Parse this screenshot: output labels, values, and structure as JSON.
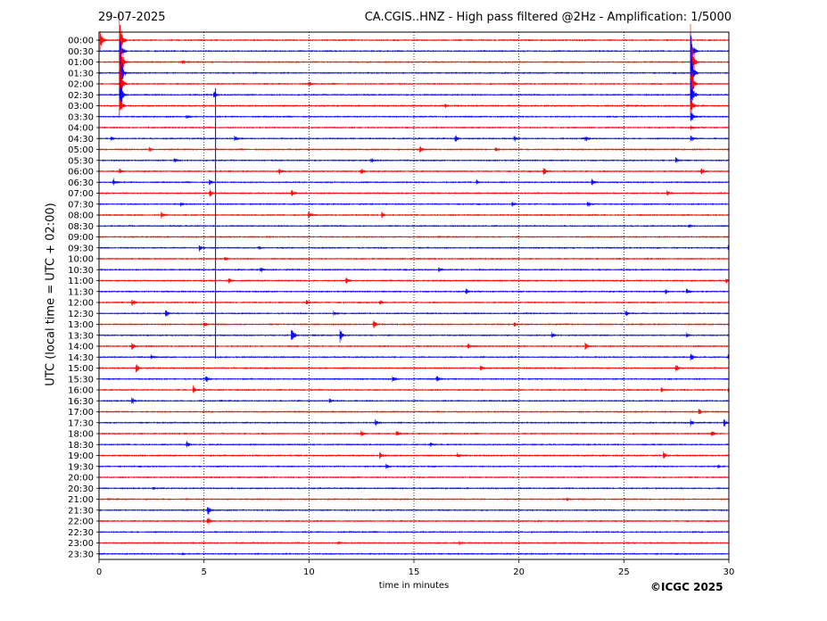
{
  "header": {
    "date": "29-07-2025",
    "title": "CA.CGIS..HNZ - High pass filtered @2Hz - Amplification: 1/5000"
  },
  "footer": {
    "copyright": "©ICGC 2025"
  },
  "chart_data": {
    "type": "line",
    "xlabel": "time in minutes",
    "ylabel": "UTC (local time = UTC + 02:00)",
    "xlim": [
      0,
      30
    ],
    "x_ticks": [
      "0",
      "5",
      "10",
      "15",
      "20",
      "25",
      "30"
    ],
    "y_ticks": [
      "00:00",
      "00:30",
      "01:00",
      "01:30",
      "02:00",
      "02:30",
      "03:00",
      "03:30",
      "04:00",
      "04:30",
      "05:00",
      "05:30",
      "06:00",
      "06:30",
      "07:00",
      "07:30",
      "08:00",
      "08:30",
      "09:00",
      "09:30",
      "10:00",
      "10:30",
      "11:00",
      "11:30",
      "12:00",
      "12:30",
      "13:00",
      "13:30",
      "14:00",
      "14:30",
      "15:00",
      "15:30",
      "16:00",
      "16:30",
      "17:00",
      "17:30",
      "18:00",
      "18:30",
      "19:00",
      "19:30",
      "20:00",
      "20:30",
      "21:00",
      "21:30",
      "22:00",
      "22:30",
      "23:00",
      "23:30"
    ],
    "grid": {
      "x": true,
      "style": "dotted"
    },
    "trace_colors": [
      "#ff0000",
      "#0000ff"
    ],
    "series": [
      {
        "row": "00:00",
        "events": [
          {
            "x": 0.1,
            "amp": 1.2
          },
          {
            "x": 1.0,
            "amp": 4
          }
        ]
      },
      {
        "row": "00:30",
        "events": [
          {
            "x": 1.0,
            "amp": 3
          },
          {
            "x": 28.2,
            "amp": 3
          }
        ]
      },
      {
        "row": "01:00",
        "events": [
          {
            "x": 1.0,
            "amp": 5
          },
          {
            "x": 4.0,
            "amp": 0.2
          },
          {
            "x": 28.2,
            "amp": 5
          }
        ]
      },
      {
        "row": "01:30",
        "events": [
          {
            "x": 1.0,
            "amp": 5
          },
          {
            "x": 28.2,
            "amp": 5
          }
        ]
      },
      {
        "row": "02:00",
        "events": [
          {
            "x": 1.0,
            "amp": 4
          },
          {
            "x": 10.0,
            "amp": 0.3
          },
          {
            "x": 28.2,
            "amp": 4
          }
        ]
      },
      {
        "row": "02:30",
        "events": [
          {
            "x": 1.0,
            "amp": 3
          },
          {
            "x": 5.5,
            "amp": 0.4
          },
          {
            "x": 28.2,
            "amp": 3
          }
        ]
      },
      {
        "row": "03:00",
        "events": [
          {
            "x": 1.0,
            "amp": 1.5
          },
          {
            "x": 16.5,
            "amp": 0.2
          },
          {
            "x": 28.2,
            "amp": 2
          }
        ]
      },
      {
        "row": "03:30",
        "events": [
          {
            "x": 4.2,
            "amp": 0.2
          },
          {
            "x": 28.2,
            "amp": 1
          }
        ]
      },
      {
        "row": "04:00",
        "events": [
          {
            "x": 28.2,
            "amp": 0.3
          }
        ]
      },
      {
        "row": "04:30",
        "events": [
          {
            "x": 0.6,
            "amp": 0.2
          },
          {
            "x": 6.5,
            "amp": 0.35
          },
          {
            "x": 17.0,
            "amp": 0.4
          },
          {
            "x": 19.8,
            "amp": 0.3
          },
          {
            "x": 23.2,
            "amp": 0.3
          },
          {
            "x": 28.2,
            "amp": 0.5
          }
        ]
      },
      {
        "row": "05:00",
        "events": [
          {
            "x": 2.4,
            "amp": 0.3
          },
          {
            "x": 15.3,
            "amp": 0.35
          },
          {
            "x": 18.9,
            "amp": 0.3
          }
        ]
      },
      {
        "row": "05:30",
        "events": [
          {
            "x": 3.6,
            "amp": 0.4
          },
          {
            "x": 13.0,
            "amp": 0.3
          },
          {
            "x": 27.5,
            "amp": 0.4
          }
        ]
      },
      {
        "row": "06:00",
        "events": [
          {
            "x": 1.0,
            "amp": 0.3
          },
          {
            "x": 8.6,
            "amp": 0.35
          },
          {
            "x": 12.5,
            "amp": 0.3
          },
          {
            "x": 21.2,
            "amp": 0.5
          },
          {
            "x": 28.7,
            "amp": 0.4
          }
        ]
      },
      {
        "row": "06:30",
        "events": [
          {
            "x": 0.7,
            "amp": 0.45
          },
          {
            "x": 5.3,
            "amp": 0.3
          },
          {
            "x": 18.0,
            "amp": 0.3
          },
          {
            "x": 23.5,
            "amp": 0.3
          }
        ]
      },
      {
        "row": "07:00",
        "events": [
          {
            "x": 5.3,
            "amp": 0.5
          },
          {
            "x": 9.2,
            "amp": 0.4
          },
          {
            "x": 27.1,
            "amp": 0.3
          }
        ]
      },
      {
        "row": "07:30",
        "events": [
          {
            "x": 3.9,
            "amp": 0.3
          },
          {
            "x": 19.7,
            "amp": 0.3
          },
          {
            "x": 23.3,
            "amp": 0.35
          }
        ]
      },
      {
        "row": "08:00",
        "events": [
          {
            "x": 3.0,
            "amp": 0.35
          },
          {
            "x": 10.0,
            "amp": 0.55
          },
          {
            "x": 13.5,
            "amp": 0.4
          }
        ]
      },
      {
        "row": "08:30",
        "events": [
          {
            "x": 28.1,
            "amp": 0.2
          }
        ]
      },
      {
        "row": "09:00",
        "events": []
      },
      {
        "row": "09:30",
        "events": [
          {
            "x": 4.8,
            "amp": 0.4
          },
          {
            "x": 7.6,
            "amp": 0.2
          },
          {
            "x": 30.0,
            "amp": 0.4
          }
        ]
      },
      {
        "row": "10:00",
        "events": [
          {
            "x": 6.0,
            "amp": 0.3
          }
        ]
      },
      {
        "row": "10:30",
        "events": [
          {
            "x": 7.7,
            "amp": 0.35
          },
          {
            "x": 16.2,
            "amp": 0.3
          }
        ]
      },
      {
        "row": "11:00",
        "events": [
          {
            "x": 6.2,
            "amp": 0.4
          },
          {
            "x": 11.8,
            "amp": 0.4
          },
          {
            "x": 29.9,
            "amp": 0.3
          }
        ]
      },
      {
        "row": "11:30",
        "events": [
          {
            "x": 17.5,
            "amp": 0.35
          },
          {
            "x": 27.0,
            "amp": 0.35
          },
          {
            "x": 28.0,
            "amp": 0.4
          }
        ]
      },
      {
        "row": "12:00",
        "events": [
          {
            "x": 1.6,
            "amp": 0.45
          },
          {
            "x": 9.9,
            "amp": 0.4
          },
          {
            "x": 13.4,
            "amp": 0.3
          }
        ]
      },
      {
        "row": "12:30",
        "events": [
          {
            "x": 3.2,
            "amp": 0.5
          },
          {
            "x": 11.2,
            "amp": 0.3
          },
          {
            "x": 25.1,
            "amp": 0.35
          }
        ]
      },
      {
        "row": "13:00",
        "events": [
          {
            "x": 5.0,
            "amp": 0.35
          },
          {
            "x": 13.1,
            "amp": 0.55
          },
          {
            "x": 19.8,
            "amp": 0.35
          }
        ]
      },
      {
        "row": "13:30",
        "events": [
          {
            "x": 9.2,
            "amp": 1.1
          },
          {
            "x": 11.5,
            "amp": 1.1
          },
          {
            "x": 21.6,
            "amp": 0.35
          },
          {
            "x": 28.0,
            "amp": 0.4
          }
        ]
      },
      {
        "row": "14:00",
        "events": [
          {
            "x": 1.6,
            "amp": 0.5
          },
          {
            "x": 17.6,
            "amp": 0.4
          },
          {
            "x": 23.2,
            "amp": 0.45
          }
        ]
      },
      {
        "row": "14:30",
        "events": [
          {
            "x": 2.5,
            "amp": 0.3
          },
          {
            "x": 28.2,
            "amp": 0.5
          },
          {
            "x": 30.0,
            "amp": 0.4
          }
        ]
      },
      {
        "row": "15:00",
        "events": [
          {
            "x": 1.8,
            "amp": 0.55
          },
          {
            "x": 18.2,
            "amp": 0.3
          },
          {
            "x": 27.5,
            "amp": 0.55
          }
        ]
      },
      {
        "row": "15:30",
        "events": [
          {
            "x": 5.1,
            "amp": 0.45
          },
          {
            "x": 14.0,
            "amp": 0.5
          },
          {
            "x": 16.1,
            "amp": 0.4
          }
        ]
      },
      {
        "row": "16:00",
        "events": [
          {
            "x": 4.5,
            "amp": 0.55
          },
          {
            "x": 26.8,
            "amp": 0.3
          },
          {
            "x": 30.0,
            "amp": 0.3
          }
        ]
      },
      {
        "row": "16:30",
        "events": [
          {
            "x": 1.6,
            "amp": 0.45
          },
          {
            "x": 11.0,
            "amp": 0.3
          }
        ]
      },
      {
        "row": "17:00",
        "events": [
          {
            "x": 28.6,
            "amp": 0.35
          }
        ]
      },
      {
        "row": "17:30",
        "events": [
          {
            "x": 13.2,
            "amp": 0.4
          },
          {
            "x": 28.2,
            "amp": 0.45
          },
          {
            "x": 29.8,
            "amp": 0.45
          }
        ]
      },
      {
        "row": "18:00",
        "events": [
          {
            "x": 12.5,
            "amp": 0.35
          },
          {
            "x": 14.2,
            "amp": 0.35
          },
          {
            "x": 29.2,
            "amp": 0.45
          }
        ]
      },
      {
        "row": "18:30",
        "events": [
          {
            "x": 4.2,
            "amp": 0.35
          },
          {
            "x": 15.8,
            "amp": 0.3
          }
        ]
      },
      {
        "row": "19:00",
        "events": [
          {
            "x": 13.4,
            "amp": 0.4
          },
          {
            "x": 17.1,
            "amp": 0.3
          },
          {
            "x": 26.9,
            "amp": 0.45
          }
        ]
      },
      {
        "row": "19:30",
        "events": [
          {
            "x": 13.7,
            "amp": 0.35
          },
          {
            "x": 29.5,
            "amp": 0.2
          }
        ]
      },
      {
        "row": "20:00",
        "events": []
      },
      {
        "row": "20:30",
        "events": [
          {
            "x": 2.6,
            "amp": 0.2
          }
        ]
      },
      {
        "row": "21:00",
        "events": [
          {
            "x": 22.3,
            "amp": 0.2
          }
        ]
      },
      {
        "row": "21:30",
        "events": [
          {
            "x": 5.2,
            "amp": 0.55
          }
        ]
      },
      {
        "row": "22:00",
        "events": [
          {
            "x": 5.2,
            "amp": 0.55
          }
        ]
      },
      {
        "row": "22:30",
        "events": []
      },
      {
        "row": "23:00",
        "events": [
          {
            "x": 11.4,
            "amp": 0.2
          },
          {
            "x": 17.2,
            "amp": 0.2
          }
        ]
      },
      {
        "row": "23:30",
        "events": [
          {
            "x": 4.0,
            "amp": 0.15
          }
        ]
      }
    ]
  }
}
